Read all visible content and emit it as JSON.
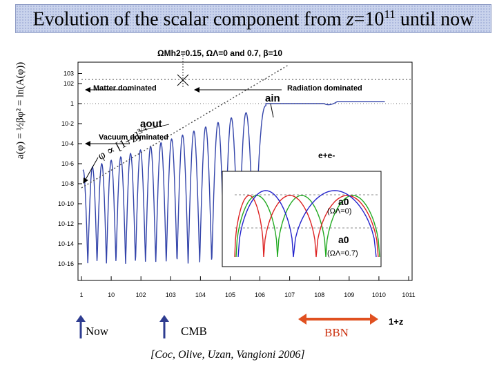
{
  "title": {
    "prefix": "Evolution of the scalar component from ",
    "zvar": "z",
    "eq": "=10",
    "exp": "11",
    "suffix": " until now"
  },
  "ylabel": "a(φ) = ½βφ² = ln(A(φ))",
  "params": "Ω_M h² = 0.15, Ω_Λ = 0 and 0.7, β = 10",
  "params_text": "ΩMh2=0.15, ΩΛ=0 and 0.7, β=10",
  "annotations": {
    "matter": "Matter dominated",
    "radiation": "Radiation dominated",
    "vacuum": "Vacuum dominated",
    "a_in": "ain",
    "a_out": "aout",
    "ee": "e+e-",
    "scaling": "φ ∝ [1+z]",
    "scaling_exp": "3/4",
    "xaxis": "1+z"
  },
  "inset": {
    "a0_label": "a0",
    "omega0": "(ΩΛ=0)",
    "omega07": "(ΩΛ=0.7)"
  },
  "markers": {
    "now": "Now",
    "cmb": "CMB",
    "bbn": "BBN"
  },
  "citation": "[Coc, Olive, Uzan, Vangioni 2006]",
  "colors": {
    "curve": "#3344aa",
    "now_arrow": "#2e3c90",
    "cmb_arrow": "#2e3c90",
    "bbn_arrow": "#e05020",
    "title_bg": "#c9d3ec",
    "green": "#22aa22",
    "red": "#dd2222",
    "blue": "#2222cc"
  },
  "chart_data": {
    "type": "line",
    "xscale": "log",
    "yscale": "log",
    "xlim": [
      1,
      100000000000.0
    ],
    "ylim": [
      1e-16,
      1000
    ],
    "xticks": [
      "1",
      "10",
      "10^2",
      "10^3",
      "10^4",
      "10^5",
      "10^6",
      "10^7",
      "10^8",
      "10^9",
      "10^10",
      "10^11"
    ],
    "yticks": [
      "10^3",
      "10^2",
      "1",
      "10^-2",
      "10^-4",
      "10^-6",
      "10^-8",
      "10^-10",
      "10^-12",
      "10^-14",
      "10^-16"
    ],
    "xlabel": "1+z",
    "ylabel": "a(φ) = ½βφ² = ln(A(φ))"
  }
}
